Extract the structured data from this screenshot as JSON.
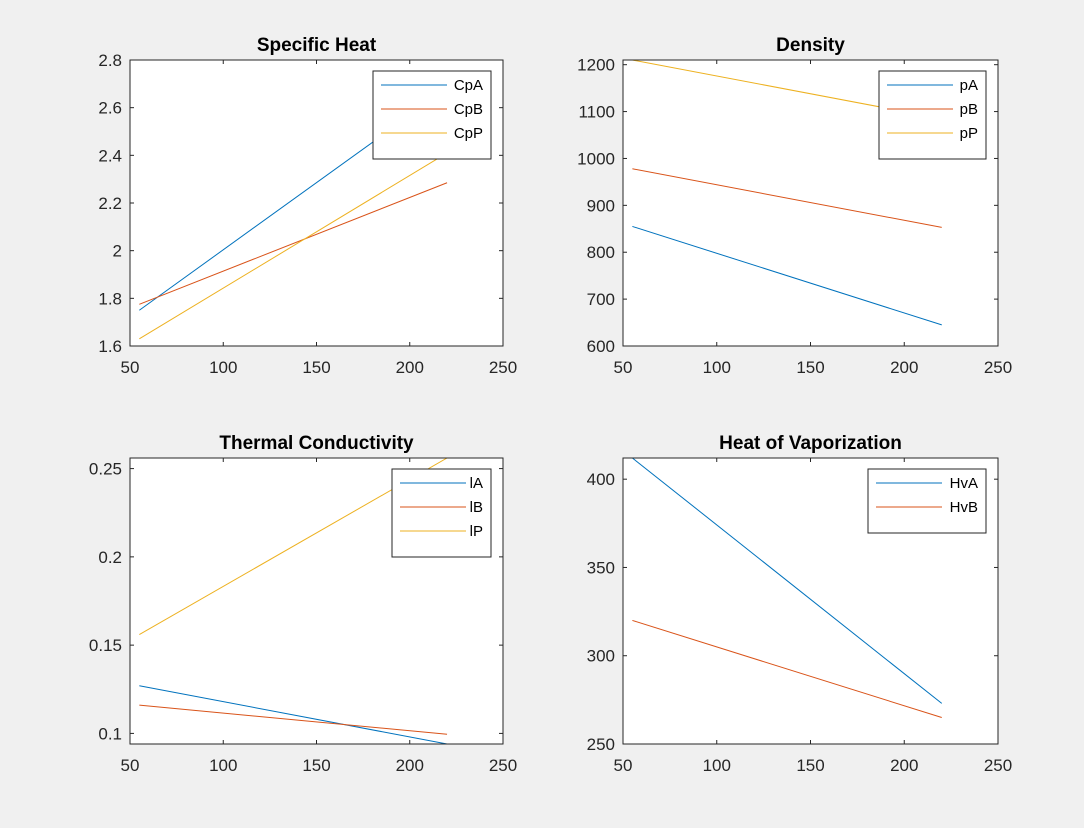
{
  "figure": {
    "background": "#f0f0f0"
  },
  "colors": {
    "blue": "#0072bd",
    "orange": "#d95319",
    "yellow": "#edb120"
  },
  "chart_data": [
    {
      "type": "line",
      "title": "Specific Heat",
      "xlim": [
        50,
        250
      ],
      "ylim": [
        1.6,
        2.8
      ],
      "xticks": [
        50,
        100,
        150,
        200,
        250
      ],
      "yticks": [
        1.6,
        1.8,
        2.0,
        2.2,
        2.4,
        2.6,
        2.8
      ],
      "yticklabels": [
        "1.6",
        "1.8",
        "2",
        "2.2",
        "2.4",
        "2.6",
        "2.8"
      ],
      "grid": false,
      "legend_position": "top-right",
      "series": [
        {
          "name": "CpA",
          "color": "#0072bd",
          "x": [
            55,
            220
          ],
          "y": [
            1.75,
            2.68
          ]
        },
        {
          "name": "CpB",
          "color": "#d95319",
          "x": [
            55,
            220
          ],
          "y": [
            1.775,
            2.285
          ]
        },
        {
          "name": "CpP",
          "color": "#edb120",
          "x": [
            55,
            220
          ],
          "y": [
            1.63,
            2.41
          ]
        }
      ]
    },
    {
      "type": "line",
      "title": "Density",
      "xlim": [
        50,
        250
      ],
      "ylim": [
        600,
        1210
      ],
      "xticks": [
        50,
        100,
        150,
        200,
        250
      ],
      "yticks": [
        600,
        700,
        800,
        900,
        1000,
        1100,
        1200
      ],
      "yticklabels": [
        "600",
        "700",
        "800",
        "900",
        "1000",
        "1100",
        "1200"
      ],
      "grid": false,
      "legend_position": "top-right",
      "series": [
        {
          "name": "pA",
          "color": "#0072bd",
          "x": [
            55,
            220
          ],
          "y": [
            855,
            645
          ]
        },
        {
          "name": "pB",
          "color": "#d95319",
          "x": [
            55,
            220
          ],
          "y": [
            978,
            853
          ]
        },
        {
          "name": "pP",
          "color": "#edb120",
          "x": [
            55,
            220
          ],
          "y": [
            1210,
            1085
          ]
        }
      ]
    },
    {
      "type": "line",
      "title": "Thermal Conductivity",
      "xlim": [
        50,
        250
      ],
      "ylim": [
        0.094,
        0.256
      ],
      "xticks": [
        50,
        100,
        150,
        200,
        250
      ],
      "yticks": [
        0.1,
        0.15,
        0.2,
        0.25
      ],
      "yticklabels": [
        "0.1",
        "0.15",
        "0.2",
        "0.25"
      ],
      "grid": false,
      "legend_position": "top-right",
      "series": [
        {
          "name": "lA",
          "color": "#0072bd",
          "x": [
            55,
            220
          ],
          "y": [
            0.127,
            0.094
          ]
        },
        {
          "name": "lB",
          "color": "#d95319",
          "x": [
            55,
            220
          ],
          "y": [
            0.116,
            0.0995
          ]
        },
        {
          "name": "lP",
          "color": "#edb120",
          "x": [
            55,
            220
          ],
          "y": [
            0.156,
            0.256
          ]
        }
      ]
    },
    {
      "type": "line",
      "title": "Heat of Vaporization",
      "xlim": [
        50,
        250
      ],
      "ylim": [
        250,
        412
      ],
      "xticks": [
        50,
        100,
        150,
        200,
        250
      ],
      "yticks": [
        250,
        300,
        350,
        400
      ],
      "yticklabels": [
        "250",
        "300",
        "350",
        "400"
      ],
      "grid": false,
      "legend_position": "top-right",
      "series": [
        {
          "name": "HvA",
          "color": "#0072bd",
          "x": [
            55,
            220
          ],
          "y": [
            412,
            273
          ]
        },
        {
          "name": "HvB",
          "color": "#d95319",
          "x": [
            55,
            220
          ],
          "y": [
            320,
            265
          ]
        }
      ]
    }
  ]
}
